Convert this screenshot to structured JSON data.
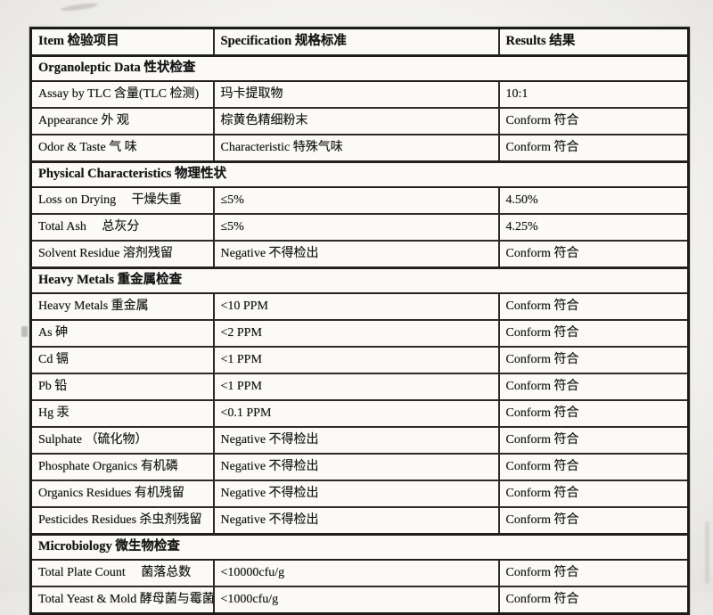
{
  "document": {
    "columns": [
      "Item  检验项目",
      "Specification  规格标准",
      "Results  结果"
    ],
    "sections": [
      {
        "title": "Organoleptic Data  性状检查",
        "rows": [
          {
            "item": "Assay by TLC  含量(TLC 检测)",
            "spec": "玛卡提取物",
            "result": "10:1"
          },
          {
            "item": "Appearance  外 观",
            "spec": "棕黄色精细粉末",
            "result": "Conform  符合"
          },
          {
            "item": "Odor & Taste  气 味",
            "spec": "Characteristic  特殊气味",
            "result": "Conform  符合"
          }
        ]
      },
      {
        "title": "Physical Characteristics  物理性状",
        "rows": [
          {
            "item": "Loss on Drying　 干燥失重",
            "spec": "≤5%",
            "result": "4.50%"
          },
          {
            "item": "Total Ash　 总灰分",
            "spec": "≤5%",
            "result": "4.25%"
          },
          {
            "item": "Solvent Residue  溶剂残留",
            "spec": "Negative  不得检出",
            "result": "Conform  符合"
          }
        ]
      },
      {
        "title": "Heavy Metals  重金属检查",
        "rows": [
          {
            "item": "Heavy Metals  重金属",
            "spec": "<10 PPM",
            "result": "Conform  符合"
          },
          {
            "item": "As  砷",
            "spec": "<2 PPM",
            "result": "Conform  符合"
          },
          {
            "item": "Cd  镉",
            "spec": "<1 PPM",
            "result": "Conform  符合"
          },
          {
            "item": "Pb  铅",
            "spec": "<1 PPM",
            "result": "Conform  符合"
          },
          {
            "item": "Hg  汞",
            "spec": "<0.1 PPM",
            "result": "Conform  符合"
          },
          {
            "item": "Sulphate （硫化物）",
            "spec": "Negative  不得检出",
            "result": "Conform  符合"
          },
          {
            "item": "Phosphate Organics  有机磷",
            "spec": "Negative  不得检出",
            "result": "Conform  符合"
          },
          {
            "item": "Organics Residues  有机残留",
            "spec": "Negative  不得检出",
            "result": "Conform  符合"
          },
          {
            "item": "Pesticides Residues  杀虫剂残留",
            "spec": "Negative  不得检出",
            "result": "Conform  符合"
          }
        ]
      },
      {
        "title": "Microbiology  微生物检查",
        "rows": [
          {
            "item": "Total Plate Count　 菌落总数",
            "spec": "<10000cfu/g",
            "result": "Conform  符合"
          },
          {
            "item": "Total Yeast & Mold  酵母菌与霉菌",
            "spec": "<1000cfu/g",
            "result": "Conform  符合"
          }
        ]
      }
    ]
  }
}
